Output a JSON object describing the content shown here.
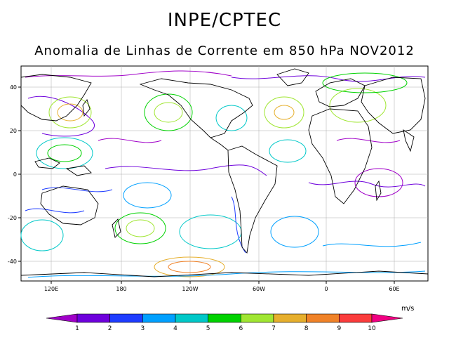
{
  "header": {
    "org": "INPE/CPTEC",
    "subtitle": "Anomalia de Linhas de Corrente em 850 hPa NOV2012"
  },
  "axes": {
    "lat_ticks": [
      "40",
      "20",
      "0",
      "-20",
      "-40"
    ],
    "lon_ticks": [
      "120E",
      "180",
      "120W",
      "60W",
      "0",
      "60E"
    ]
  },
  "colorbar": {
    "units": "m/s",
    "labels": [
      "1",
      "2",
      "3",
      "4",
      "5",
      "6",
      "7",
      "8",
      "9",
      "10"
    ],
    "colors": [
      "#a000c8",
      "#6e00dc",
      "#1e3cff",
      "#00a0ff",
      "#00c8c8",
      "#00d200",
      "#a0e632",
      "#e6af2d",
      "#f08228",
      "#fa3c3c",
      "#f00082"
    ]
  }
}
